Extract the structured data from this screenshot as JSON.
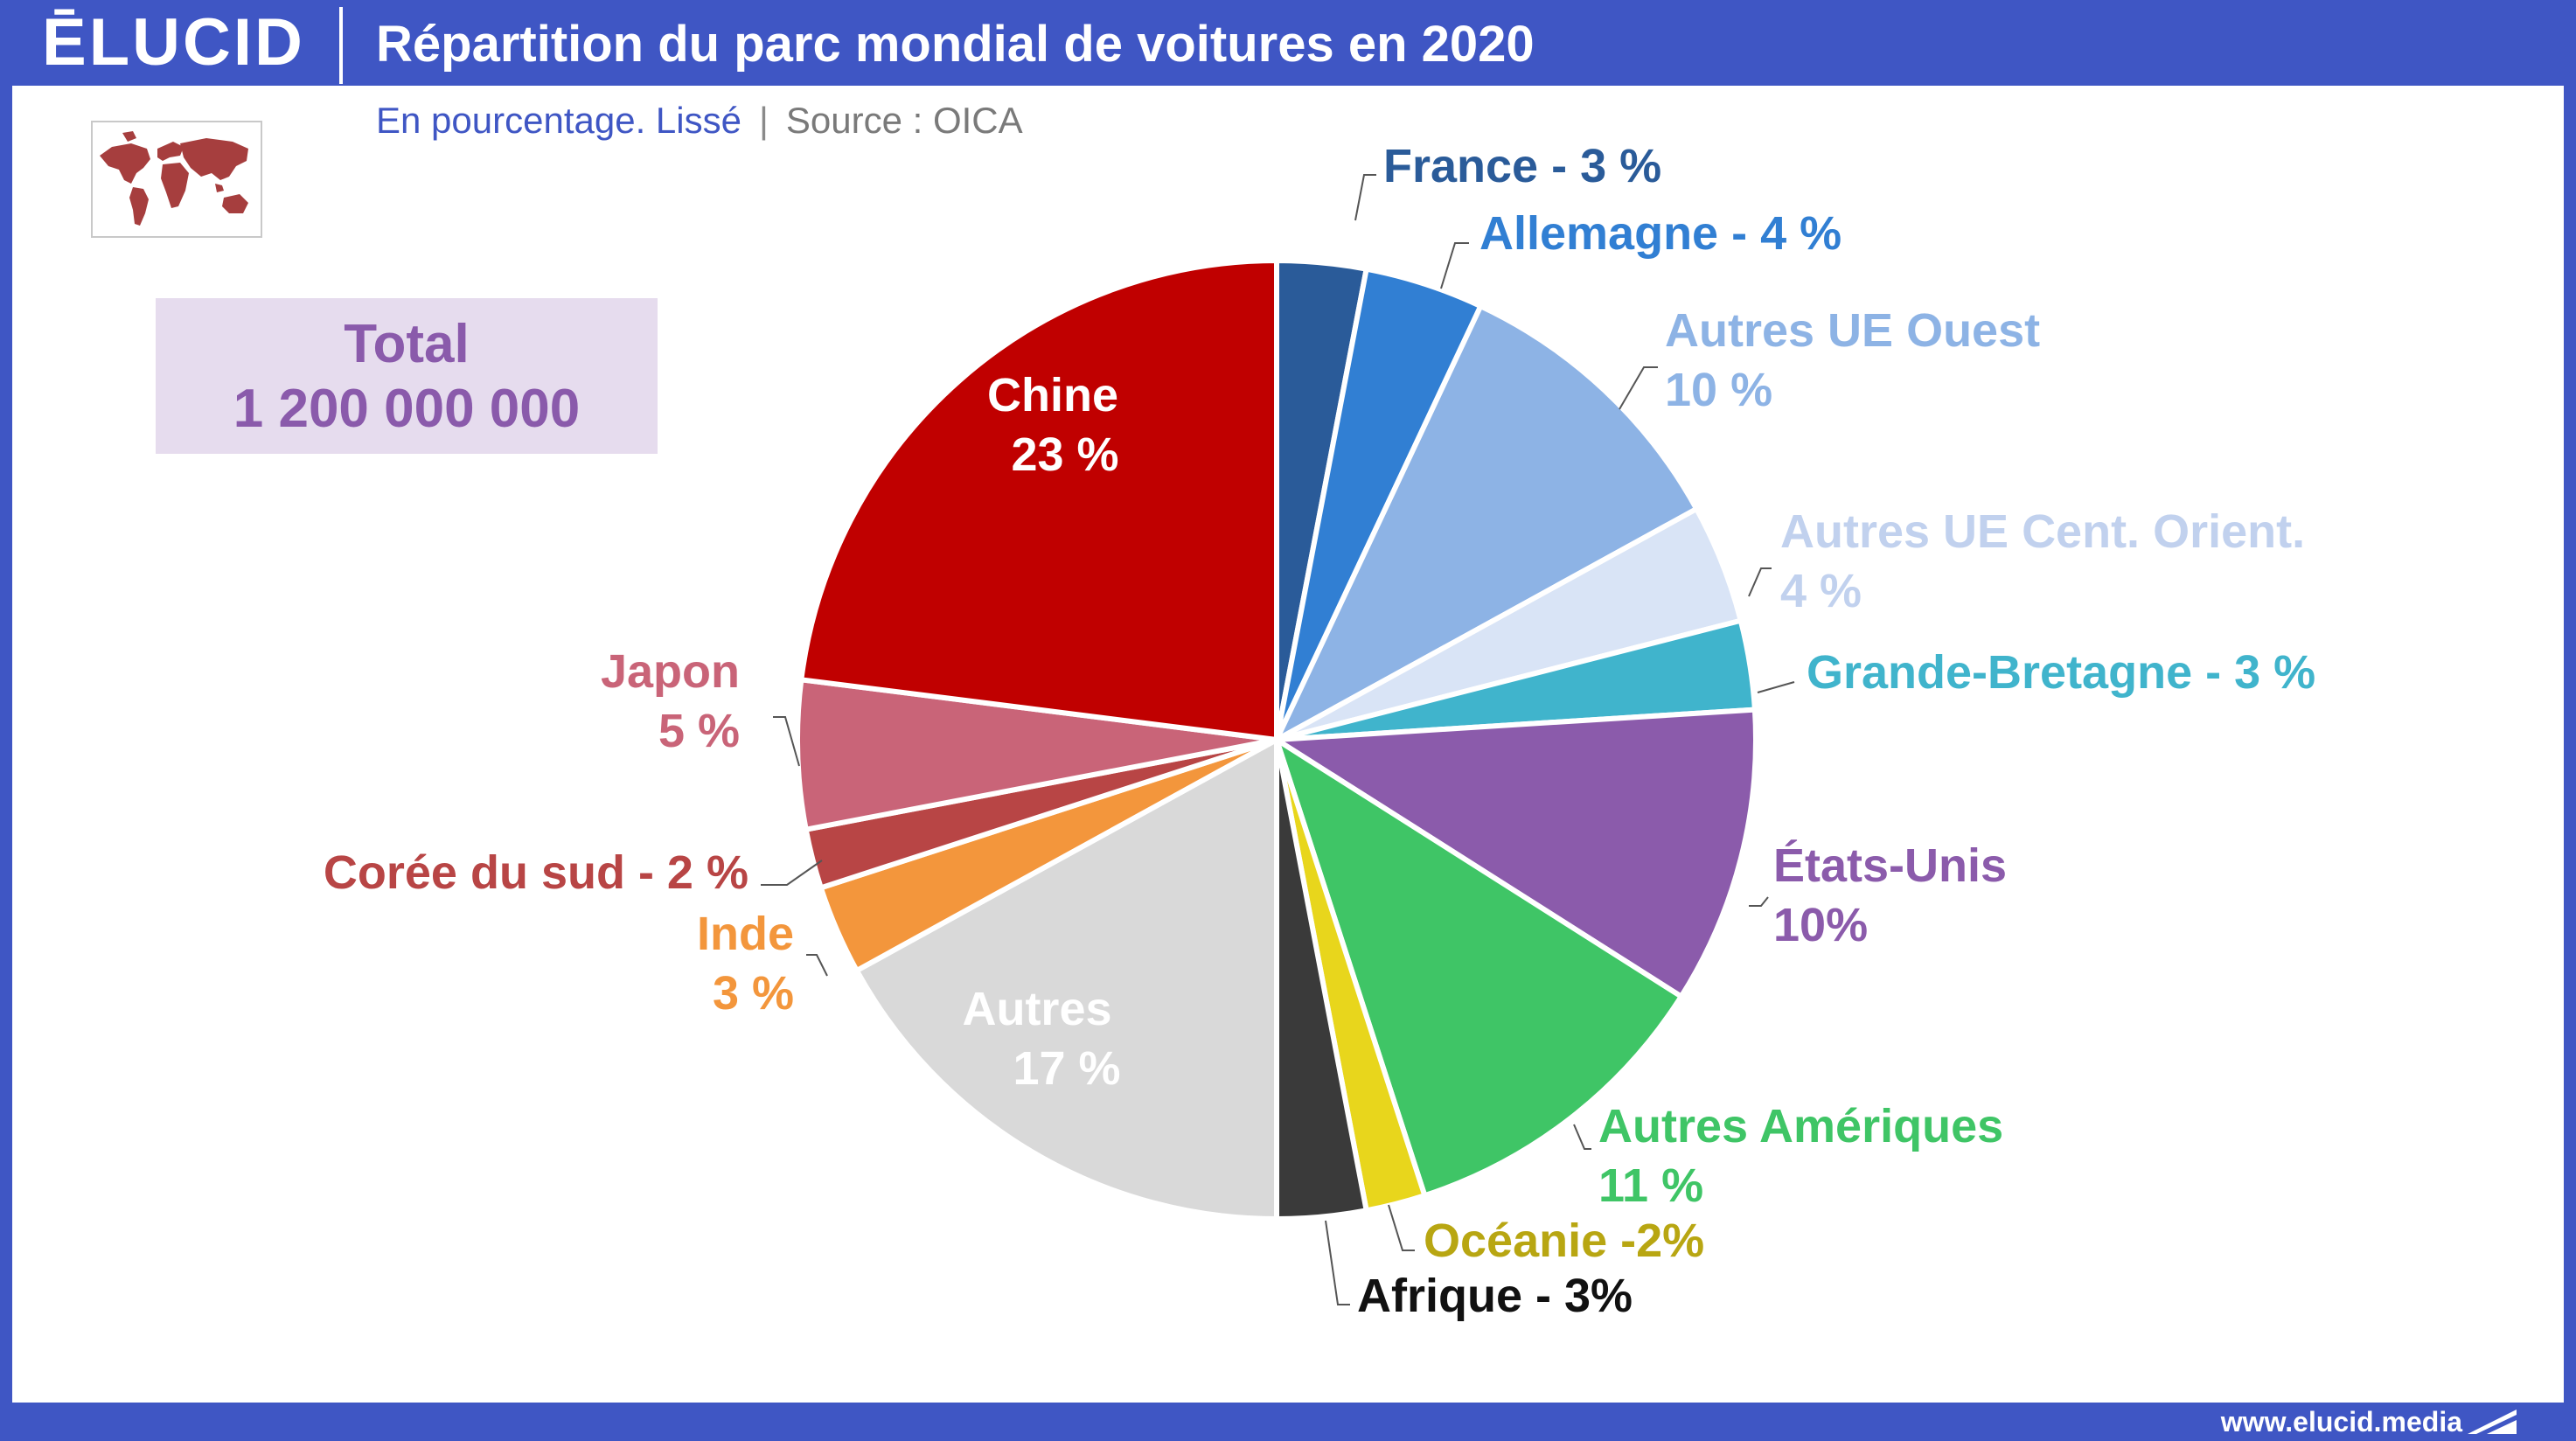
{
  "header": {
    "logo_text": "ĒLUCID",
    "title": "Répartition du parc mondial de voitures en 2020"
  },
  "subtitle": {
    "part1": "En pourcentage. Lissé",
    "separator": "|",
    "part2": "Source : OICA"
  },
  "total": {
    "label": "Total",
    "value": "1 200 000 000"
  },
  "footer": {
    "url": "www.elucid.media"
  },
  "icons": {
    "map": "world-map-icon",
    "footer": "triangle-flag-icon"
  },
  "colors": {
    "brand": "#3f56c4",
    "map": "#a63e3e",
    "total_bg": "#e6dcee",
    "total_text": "#8a5aab"
  },
  "chart_data": {
    "type": "pie",
    "title": "Répartition du parc mondial de voitures en 2020",
    "start_angle_deg": 0,
    "direction": "clockwise",
    "slices": [
      {
        "name": "France",
        "value": 3,
        "color": "#2a5b99",
        "label_color": "#2a5b99",
        "label_lines": [
          "France - 3 %"
        ]
      },
      {
        "name": "Allemagne",
        "value": 4,
        "color": "#317fd3",
        "label_color": "#317fd3",
        "label_lines": [
          "Allemagne - 4 %"
        ]
      },
      {
        "name": "Autres UE Ouest",
        "value": 10,
        "color": "#8db3e5",
        "label_color": "#8db3e5",
        "label_lines": [
          "Autres UE Ouest",
          "10 %"
        ]
      },
      {
        "name": "Autres UE Cent. Orient.",
        "value": 4,
        "color": "#d9e4f6",
        "label_color": "#c1d1ee",
        "label_lines": [
          "Autres UE Cent. Orient.",
          "4 %"
        ]
      },
      {
        "name": "Grande-Bretagne",
        "value": 3,
        "color": "#40b4cc",
        "label_color": "#40b4cc",
        "label_lines": [
          "Grande-Bretagne - 3 %"
        ]
      },
      {
        "name": "États-Unis",
        "value": 10,
        "color": "#8b5bab",
        "label_color": "#8b5bab",
        "label_lines": [
          "États-Unis",
          "10%"
        ]
      },
      {
        "name": "Autres Amériques",
        "value": 11,
        "color": "#3fc566",
        "label_color": "#3fc566",
        "label_lines": [
          "Autres Amériques",
          "11 %"
        ]
      },
      {
        "name": "Océanie",
        "value": 2,
        "color": "#e8d61c",
        "label_color": "#b8a612",
        "label_lines": [
          "Océanie -2%"
        ]
      },
      {
        "name": "Afrique",
        "value": 3,
        "color": "#3a3a3a",
        "label_color": "#111111",
        "label_lines": [
          "Afrique - 3%"
        ]
      },
      {
        "name": "Autres",
        "value": 17,
        "color": "#d9d9d9",
        "label_color": "#ffffff",
        "label_lines": [
          "Autres",
          "17 %"
        ]
      },
      {
        "name": "Inde",
        "value": 3,
        "color": "#f3963c",
        "label_color": "#f3963c",
        "label_lines": [
          "Inde",
          "3 %"
        ]
      },
      {
        "name": "Corée du sud",
        "value": 2,
        "color": "#b84545",
        "label_color": "#b84545",
        "label_lines": [
          "Corée du sud - 2 %"
        ]
      },
      {
        "name": "Japon",
        "value": 5,
        "color": "#c96478",
        "label_color": "#c96478",
        "label_lines": [
          "Japon",
          "5 %"
        ]
      },
      {
        "name": "Chine",
        "value": 23,
        "color": "#c00000",
        "label_color": "#ffffff",
        "label_lines": [
          "Chine",
          "23 %"
        ]
      }
    ],
    "legend": "none",
    "labels": "outside-with-leaders"
  }
}
